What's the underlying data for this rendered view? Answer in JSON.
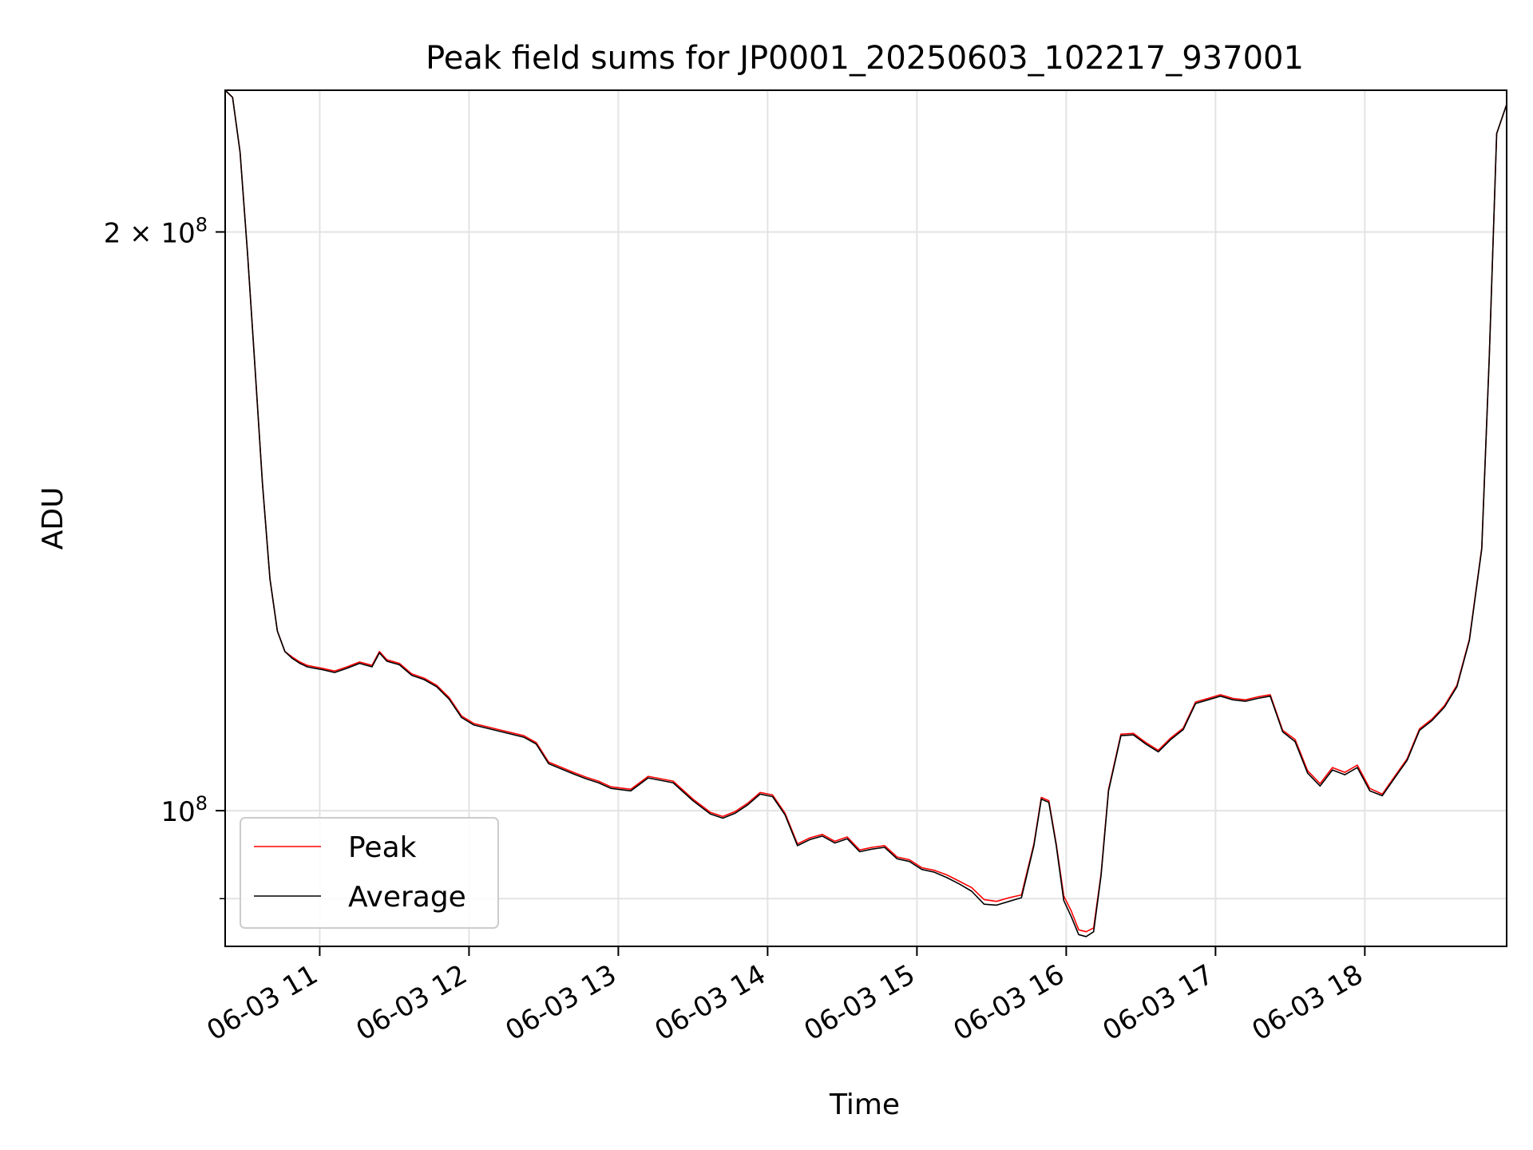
{
  "chart_data": {
    "type": "line",
    "title": "Peak field sums for JP0001_20250603_102217_937001",
    "xlabel": "Time",
    "ylabel": "ADU",
    "y_scale": "log",
    "ylim": [
      85000000,
      237000000
    ],
    "xlim": [
      "06-03 10:22",
      "06-03 18:57"
    ],
    "grid": true,
    "legend_position": "lower-left",
    "x_ticks": [
      "06-03 11",
      "06-03 12",
      "06-03 13",
      "06-03 14",
      "06-03 15",
      "06-03 16",
      "06-03 17",
      "06-03 18"
    ],
    "y_ticks": [
      {
        "label_base": "2 × 10",
        "label_exp": "8",
        "value": 200000000
      },
      {
        "label_base": "10",
        "label_exp": "8",
        "value": 100000000
      }
    ],
    "x": [
      "06-03 10:22",
      "06-03 10:25",
      "06-03 10:28",
      "06-03 10:31",
      "06-03 10:34",
      "06-03 10:37",
      "06-03 10:40",
      "06-03 10:43",
      "06-03 10:46",
      "06-03 10:49",
      "06-03 10:52",
      "06-03 10:55",
      "06-03 10:58",
      "06-03 11:01",
      "06-03 11:06",
      "06-03 11:11",
      "06-03 11:16",
      "06-03 11:21",
      "06-03 11:24",
      "06-03 11:27",
      "06-03 11:32",
      "06-03 11:37",
      "06-03 11:42",
      "06-03 11:47",
      "06-03 11:52",
      "06-03 11:57",
      "06-03 12:02",
      "06-03 12:12",
      "06-03 12:22",
      "06-03 12:27",
      "06-03 12:32",
      "06-03 12:42",
      "06-03 12:47",
      "06-03 12:52",
      "06-03 12:57",
      "06-03 13:05",
      "06-03 13:12",
      "06-03 13:22",
      "06-03 13:30",
      "06-03 13:37",
      "06-03 13:42",
      "06-03 13:47",
      "06-03 13:52",
      "06-03 13:57",
      "06-03 14:02",
      "06-03 14:07",
      "06-03 14:12",
      "06-03 14:17",
      "06-03 14:22",
      "06-03 14:27",
      "06-03 14:32",
      "06-03 14:37",
      "06-03 14:42",
      "06-03 14:47",
      "06-03 14:52",
      "06-03 14:57",
      "06-03 15:02",
      "06-03 15:07",
      "06-03 15:12",
      "06-03 15:17",
      "06-03 15:22",
      "06-03 15:27",
      "06-03 15:32",
      "06-03 15:37",
      "06-03 15:42",
      "06-03 15:47",
      "06-03 15:50",
      "06-03 15:53",
      "06-03 15:56",
      "06-03 15:59",
      "06-03 16:02",
      "06-03 16:05",
      "06-03 16:08",
      "06-03 16:11",
      "06-03 16:14",
      "06-03 16:17",
      "06-03 16:22",
      "06-03 16:27",
      "06-03 16:32",
      "06-03 16:37",
      "06-03 16:42",
      "06-03 16:47",
      "06-03 16:52",
      "06-03 16:57",
      "06-03 17:02",
      "06-03 17:07",
      "06-03 17:12",
      "06-03 17:17",
      "06-03 17:22",
      "06-03 17:27",
      "06-03 17:32",
      "06-03 17:37",
      "06-03 17:42",
      "06-03 17:47",
      "06-03 17:52",
      "06-03 17:57",
      "06-03 18:02",
      "06-03 18:07",
      "06-03 18:12",
      "06-03 18:17",
      "06-03 18:22",
      "06-03 18:27",
      "06-03 18:32",
      "06-03 18:37",
      "06-03 18:42",
      "06-03 18:47",
      "06-03 18:50",
      "06-03 18:53",
      "06-03 18:57"
    ],
    "series": [
      {
        "name": "Peak",
        "color": "#ff0000",
        "values": [
          237000000,
          235000000,
          220000000,
          195000000,
          170000000,
          148000000,
          132000000,
          124000000,
          121000000,
          120200000,
          119500000,
          119000000,
          118800000,
          118600000,
          118200000,
          118800000,
          119500000,
          119000000,
          121000000,
          119800000,
          119300000,
          117800000,
          117200000,
          116200000,
          114500000,
          112000000,
          111000000,
          110200000,
          109400000,
          108500000,
          106000000,
          104700000,
          104100000,
          103600000,
          102900000,
          102600000,
          104200000,
          103600000,
          101400000,
          99800000,
          99300000,
          99900000,
          100900000,
          102200000,
          101900000,
          99700000,
          96100000,
          96800000,
          97200000,
          96400000,
          96900000,
          95400000,
          95700000,
          95900000,
          94600000,
          94300000,
          93400000,
          93100000,
          92600000,
          91900000,
          91200000,
          89900000,
          89700000,
          90100000,
          90400000,
          96100000,
          101600000,
          101200000,
          96100000,
          90300000,
          88700000,
          86700000,
          86500000,
          86900000,
          92700000,
          102600000,
          109600000,
          109700000,
          108500000,
          107500000,
          109100000,
          110400000,
          113900000,
          114400000,
          114900000,
          114400000,
          114200000,
          114600000,
          114900000,
          110100000,
          108900000,
          104900000,
          103300000,
          105300000,
          104700000,
          105600000,
          102700000,
          102000000,
          104200000,
          106400000,
          110300000,
          111600000,
          113400000,
          116200000,
          122800000,
          137000000,
          172000000,
          225000000,
          233000000
        ]
      },
      {
        "name": "Average",
        "color": "#000000",
        "values": [
          237000000,
          235000000,
          220000000,
          195000000,
          170000000,
          148000000,
          132000000,
          124000000,
          121000000,
          120000000,
          119300000,
          118800000,
          118600000,
          118400000,
          118000000,
          118600000,
          119300000,
          118800000,
          120800000,
          119600000,
          119100000,
          117600000,
          117000000,
          116000000,
          114300000,
          111800000,
          110800000,
          110000000,
          109200000,
          108300000,
          105800000,
          104500000,
          103900000,
          103400000,
          102700000,
          102400000,
          104000000,
          103400000,
          101200000,
          99600000,
          99100000,
          99700000,
          100700000,
          102000000,
          101700000,
          99500000,
          95900000,
          96600000,
          97000000,
          96200000,
          96700000,
          95200000,
          95500000,
          95700000,
          94400000,
          94100000,
          93200000,
          92900000,
          92300000,
          91600000,
          90800000,
          89400000,
          89300000,
          89700000,
          90100000,
          95900000,
          101400000,
          101000000,
          95900000,
          89800000,
          88100000,
          86200000,
          86000000,
          86500000,
          92500000,
          102400000,
          109400000,
          109500000,
          108300000,
          107300000,
          108900000,
          110200000,
          113700000,
          114200000,
          114700000,
          114200000,
          114000000,
          114400000,
          114700000,
          109900000,
          108600000,
          104600000,
          103000000,
          105000000,
          104400000,
          105300000,
          102400000,
          101800000,
          104000000,
          106200000,
          110100000,
          111400000,
          113200000,
          116000000,
          122600000,
          136800000,
          172000000,
          225000000,
          233000000
        ]
      }
    ]
  }
}
